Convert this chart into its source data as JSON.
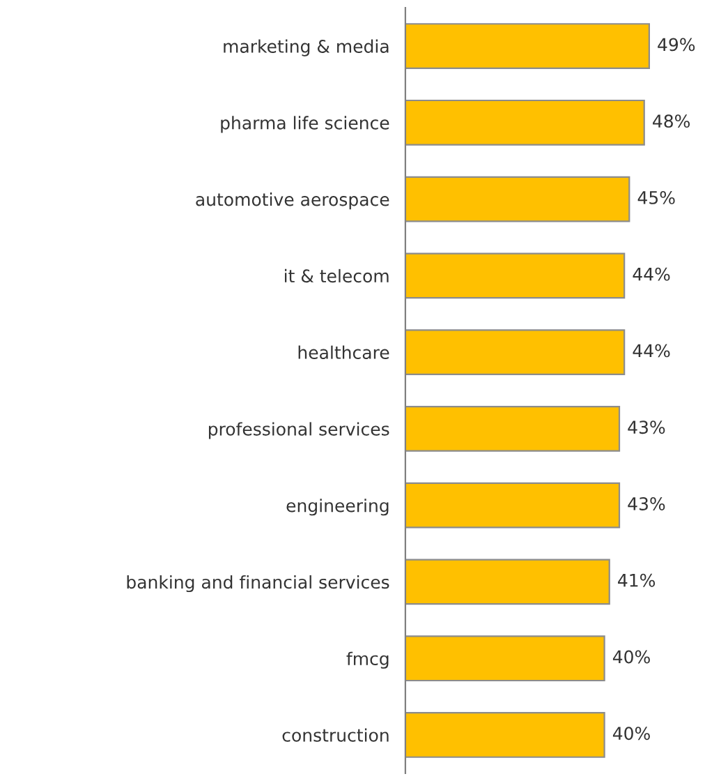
{
  "chart_data": {
    "type": "bar",
    "orientation": "horizontal",
    "categories": [
      "marketing & media",
      "pharma life science",
      "automotive aerospace",
      "it & telecom",
      "healthcare",
      "professional services",
      "engineering",
      "banking and financial services",
      "fmcg",
      "construction"
    ],
    "values": [
      49,
      48,
      45,
      44,
      44,
      43,
      43,
      41,
      40,
      40
    ],
    "value_labels": [
      "49%",
      "48%",
      "45%",
      "44%",
      "44%",
      "43%",
      "43%",
      "41%",
      "40%",
      "40%"
    ],
    "color": "#ffc000",
    "grid": false,
    "legend": false
  }
}
